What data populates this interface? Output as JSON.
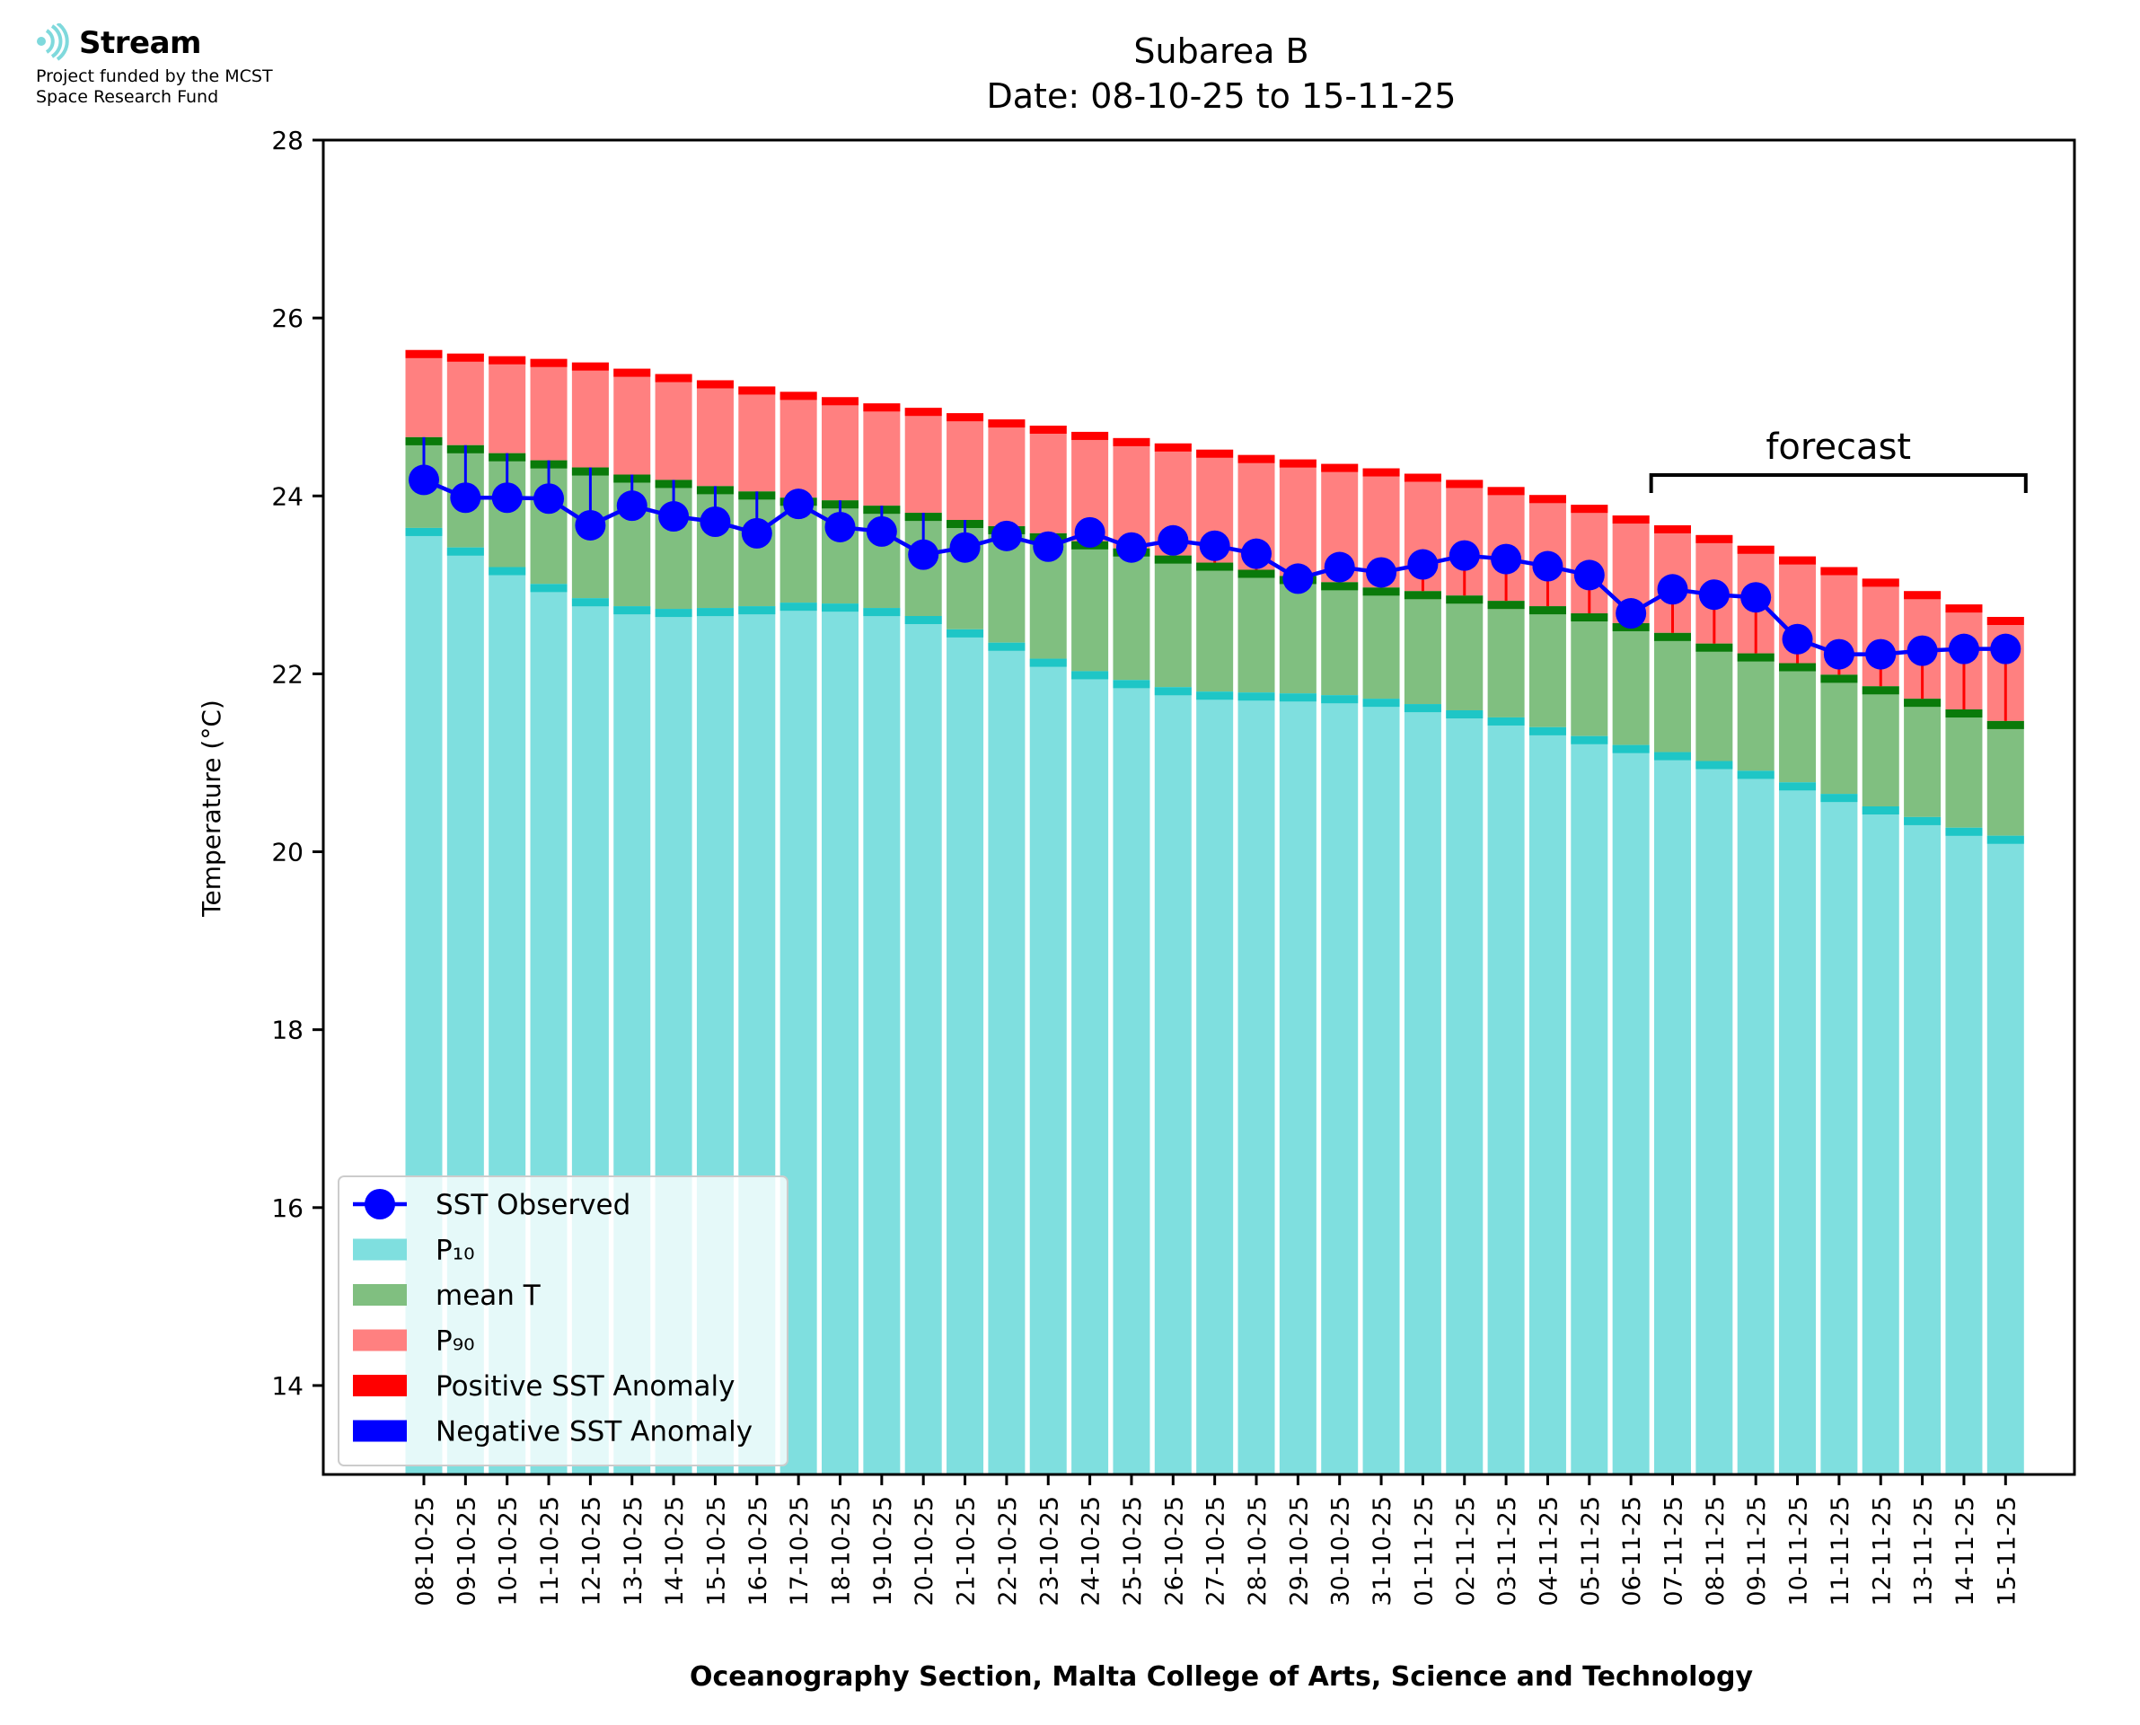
{
  "logo": {
    "name": "Stream",
    "line1": "Project funded by the MCST",
    "line2": "Space Research Fund",
    "color": "#7fd9dc"
  },
  "chart_data": {
    "type": "bar",
    "title": "Subarea B",
    "subtitle": "Date: 08-10-25 to 15-11-25",
    "xlabel": "Oceanography Section, Malta College of Arts, Science and Technology",
    "ylabel": "Temperature (°C)",
    "ylim": [
      13,
      28
    ],
    "yticks": [
      14,
      16,
      18,
      20,
      22,
      24,
      26,
      28
    ],
    "categories": [
      "08-10-25",
      "09-10-25",
      "10-10-25",
      "11-10-25",
      "12-10-25",
      "13-10-25",
      "14-10-25",
      "15-10-25",
      "16-10-25",
      "17-10-25",
      "18-10-25",
      "19-10-25",
      "20-10-25",
      "21-10-25",
      "22-10-25",
      "23-10-25",
      "24-10-25",
      "25-10-25",
      "26-10-25",
      "27-10-25",
      "28-10-25",
      "29-10-25",
      "30-10-25",
      "31-10-25",
      "01-11-25",
      "02-11-25",
      "03-11-25",
      "04-11-25",
      "05-11-25",
      "06-11-25",
      "07-11-25",
      "08-11-25",
      "09-11-25",
      "10-11-25",
      "11-11-25",
      "12-11-25",
      "13-11-25",
      "14-11-25",
      "15-11-25"
    ],
    "series": [
      {
        "name": "SST Observed",
        "color": "#0000ff",
        "values": [
          24.18,
          23.98,
          23.98,
          23.97,
          23.67,
          23.89,
          23.77,
          23.71,
          23.58,
          23.91,
          23.65,
          23.6,
          23.34,
          23.42,
          23.55,
          23.43,
          23.59,
          23.42,
          23.5,
          23.44,
          23.35,
          23.07,
          23.2,
          23.14,
          23.23,
          23.33,
          23.29,
          23.21,
          23.11,
          22.68,
          22.95,
          22.89,
          22.86,
          22.39,
          22.22,
          22.22,
          22.26,
          22.28,
          22.28
        ]
      },
      {
        "name": "P₁₀",
        "color": "#7fdfdf",
        "edge": "#1ec6c6",
        "values": [
          23.64,
          23.42,
          23.2,
          23.01,
          22.85,
          22.76,
          22.73,
          22.74,
          22.76,
          22.8,
          22.79,
          22.74,
          22.65,
          22.5,
          22.35,
          22.17,
          22.03,
          21.93,
          21.85,
          21.8,
          21.79,
          21.78,
          21.76,
          21.72,
          21.66,
          21.59,
          21.51,
          21.4,
          21.3,
          21.2,
          21.12,
          21.02,
          20.91,
          20.78,
          20.65,
          20.51,
          20.39,
          20.27,
          20.18
        ]
      },
      {
        "name": "mean T",
        "color": "#80bf80",
        "edge": "#0a7a0a",
        "values": [
          24.66,
          24.57,
          24.48,
          24.4,
          24.32,
          24.24,
          24.18,
          24.11,
          24.05,
          23.98,
          23.95,
          23.89,
          23.81,
          23.73,
          23.66,
          23.58,
          23.49,
          23.41,
          23.33,
          23.25,
          23.17,
          23.1,
          23.03,
          22.97,
          22.93,
          22.88,
          22.82,
          22.76,
          22.68,
          22.57,
          22.46,
          22.34,
          22.23,
          22.12,
          21.99,
          21.86,
          21.72,
          21.6,
          21.47
        ]
      },
      {
        "name": "P₉₀",
        "color": "#ff8080",
        "edge": "#ff0000",
        "values": [
          25.64,
          25.6,
          25.57,
          25.54,
          25.5,
          25.43,
          25.37,
          25.3,
          25.23,
          25.17,
          25.11,
          25.04,
          24.99,
          24.93,
          24.86,
          24.79,
          24.72,
          24.65,
          24.59,
          24.52,
          24.46,
          24.41,
          24.36,
          24.31,
          24.25,
          24.18,
          24.1,
          24.01,
          23.9,
          23.78,
          23.67,
          23.56,
          23.44,
          23.32,
          23.2,
          23.07,
          22.93,
          22.78,
          22.64
        ]
      }
    ],
    "anomaly_legend": [
      {
        "name": "Positive SST Anomaly",
        "color": "#ff0000"
      },
      {
        "name": "Negative SST Anomaly",
        "color": "#0000ff"
      }
    ],
    "annotation": {
      "text": "forecast",
      "from": "06-11-25",
      "to": "15-11-25"
    },
    "legend_position": "lower-left",
    "grid": false
  }
}
